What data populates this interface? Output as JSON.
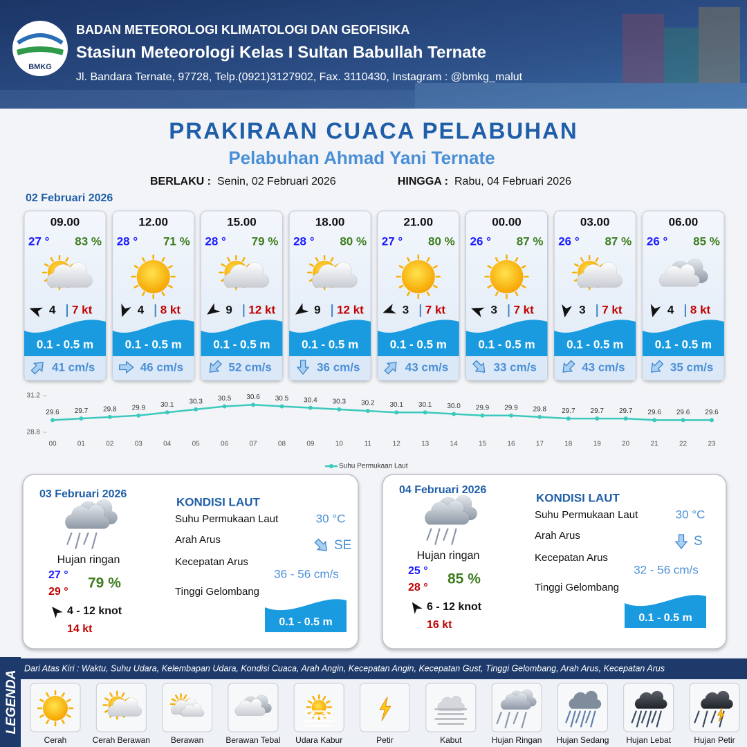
{
  "header": {
    "logo": "BMKG",
    "agency": "BADAN METEOROLOGI KLIMATOLOGI DAN GEOFISIKA",
    "station": "Stasiun Meteorologi Kelas I Sultan Babullah Ternate",
    "address": "Jl. Bandara Ternate, 97728, Telp.(0921)3127902, Fax. 3110430, Instagram : @bmkg_malut"
  },
  "title": "PRAKIRAAN CUACA PELABUHAN",
  "subtitle": "Pelabuhan Ahmad Yani Ternate",
  "validity": {
    "from_label": "BERLAKU :",
    "from": "Senin, 02 Februari 2026",
    "until_label": "HINGGA :",
    "until": "Rabu, 04 Februari 2026"
  },
  "day1": {
    "date": "02 Februari 2026",
    "forecasts": [
      {
        "time": "09.00",
        "temp": "27 °",
        "humidity": "83 %",
        "icon": "sun-cloud",
        "wind_arrow_deg": 290,
        "wind": "4",
        "gust": "7 kt",
        "wave": "0.1 - 0.5 m",
        "current_arrow_deg": 45,
        "current": "41 cm/s"
      },
      {
        "time": "12.00",
        "temp": "28 °",
        "humidity": "71 %",
        "icon": "sun",
        "wind_arrow_deg": 200,
        "wind": "4",
        "gust": "8 kt",
        "wave": "0.1 - 0.5 m",
        "current_arrow_deg": 90,
        "current": "46 cm/s"
      },
      {
        "time": "15.00",
        "temp": "28 °",
        "humidity": "79 %",
        "icon": "sun-cloud",
        "wind_arrow_deg": 235,
        "wind": "9",
        "gust": "12 kt",
        "wave": "0.1 - 0.5 m",
        "current_arrow_deg": 225,
        "current": "52 cm/s"
      },
      {
        "time": "18.00",
        "temp": "28 °",
        "humidity": "80 %",
        "icon": "sun-cloud",
        "wind_arrow_deg": 235,
        "wind": "9",
        "gust": "12 kt",
        "wave": "0.1 - 0.5 m",
        "current_arrow_deg": 180,
        "current": "36 cm/s"
      },
      {
        "time": "21.00",
        "temp": "27 °",
        "humidity": "80 %",
        "icon": "sun",
        "wind_arrow_deg": 250,
        "wind": "3",
        "gust": "7 kt",
        "wave": "0.1 - 0.5 m",
        "current_arrow_deg": 45,
        "current": "43 cm/s"
      },
      {
        "time": "00.00",
        "temp": "26 °",
        "humidity": "87 %",
        "icon": "sun",
        "wind_arrow_deg": 290,
        "wind": "3",
        "gust": "7 kt",
        "wave": "0.1 - 0.5 m",
        "current_arrow_deg": 135,
        "current": "33 cm/s"
      },
      {
        "time": "03.00",
        "temp": "26 °",
        "humidity": "87 %",
        "icon": "sun-cloud",
        "wind_arrow_deg": 190,
        "wind": "3",
        "gust": "7 kt",
        "wave": "0.1 - 0.5 m",
        "current_arrow_deg": 225,
        "current": "43 cm/s"
      },
      {
        "time": "06.00",
        "temp": "26 °",
        "humidity": "85 %",
        "icon": "overcast",
        "wind_arrow_deg": 195,
        "wind": "4",
        "gust": "8 kt",
        "wave": "0.1 - 0.5 m",
        "current_arrow_deg": 225,
        "current": "35 cm/s"
      }
    ]
  },
  "chart_data": {
    "type": "line",
    "categories": [
      "00",
      "01",
      "02",
      "03",
      "04",
      "05",
      "06",
      "07",
      "08",
      "09",
      "10",
      "11",
      "12",
      "13",
      "14",
      "15",
      "16",
      "17",
      "18",
      "19",
      "20",
      "21",
      "22",
      "23"
    ],
    "series": [
      {
        "name": "Suhu Permukaan Laut",
        "color": "#3cc9bd",
        "values": [
          29.6,
          29.7,
          29.8,
          29.9,
          30.1,
          30.3,
          30.5,
          30.6,
          30.5,
          30.4,
          30.3,
          30.2,
          30.1,
          30.1,
          30.0,
          29.9,
          29.9,
          29.8,
          29.7,
          29.7,
          29.7,
          29.6,
          29.6,
          29.6
        ],
        "value_labels": [
          "29.6",
          "29.7",
          "29.8",
          "29.9",
          "30.1",
          "30.3",
          "30.5",
          "30.6",
          "30.5",
          "30.4",
          "30.3",
          "30.2",
          "30.1",
          "30.1",
          "30.0",
          "29.9",
          "29.9",
          "29.8",
          "29.7",
          "29.7",
          "29.7",
          "29.6",
          "29.6",
          "29.6"
        ]
      }
    ],
    "ylim": [
      28.8,
      31.2
    ],
    "yticks": [
      28.8,
      31.2
    ],
    "legend": "bottom"
  },
  "days": [
    {
      "date": "03 Februari 2026",
      "icon": "rain-light",
      "condition": "Hujan ringan",
      "temp_min": "27 °",
      "temp_max": "29 °",
      "humidity": "79 %",
      "wind_arrow_deg": 320,
      "wind": "4  - 12 knot",
      "gust": "14 kt",
      "sea_title": "KONDISI LAUT",
      "sst_label": "Suhu Permukaan Laut",
      "sst": "30 °C",
      "current_dir_label": "Arah Arus",
      "current_arrow_deg": 135,
      "current_dir": "SE",
      "current_speed_label": "Kecepatan Arus",
      "current_speed": "36  - 56 cm/s",
      "wave_label": "Tinggi Gelombang",
      "wave": "0.1 - 0.5 m"
    },
    {
      "date": "04 Februari 2026",
      "icon": "rain-light",
      "condition": "Hujan ringan",
      "temp_min": "25 °",
      "temp_max": "28 °",
      "humidity": "85 %",
      "wind_arrow_deg": 325,
      "wind": "6  - 12 knot",
      "gust": "16 kt",
      "sea_title": "KONDISI LAUT",
      "sst_label": "Suhu Permukaan Laut",
      "sst": "30 °C",
      "current_dir_label": "Arah Arus",
      "current_arrow_deg": 180,
      "current_dir": "S",
      "current_speed_label": "Kecepatan Arus",
      "current_speed": "32  - 56 cm/s",
      "wave_label": "Tinggi Gelombang",
      "wave": "0.1 - 0.5 m"
    }
  ],
  "legend": {
    "title": "LEGENDA",
    "description": "Dari Atas Kiri : Waktu, Suhu Udara, Kelembapan Udara, Kondisi Cuaca, Arah Angin, Kecepatan Angin, Kecepatan Gust, Tinggi Gelombang, Arah Arus, Kecepatan Arus",
    "items": [
      {
        "name": "Cerah",
        "icon": "sun"
      },
      {
        "name": "Cerah Berawan",
        "icon": "sun-cloud"
      },
      {
        "name": "Berawan",
        "icon": "cloudy"
      },
      {
        "name": "Berawan Tebal",
        "icon": "overcast"
      },
      {
        "name": "Udara Kabur",
        "icon": "haze"
      },
      {
        "name": "Petir",
        "icon": "lightning"
      },
      {
        "name": "Kabut",
        "icon": "fog"
      },
      {
        "name": "Hujan Ringan",
        "icon": "rain-light"
      },
      {
        "name": "Hujan Sedang",
        "icon": "rain-moderate"
      },
      {
        "name": "Hujan Lebat",
        "icon": "rain-heavy"
      },
      {
        "name": "Hujan Petir",
        "icon": "thunderstorm"
      }
    ]
  }
}
